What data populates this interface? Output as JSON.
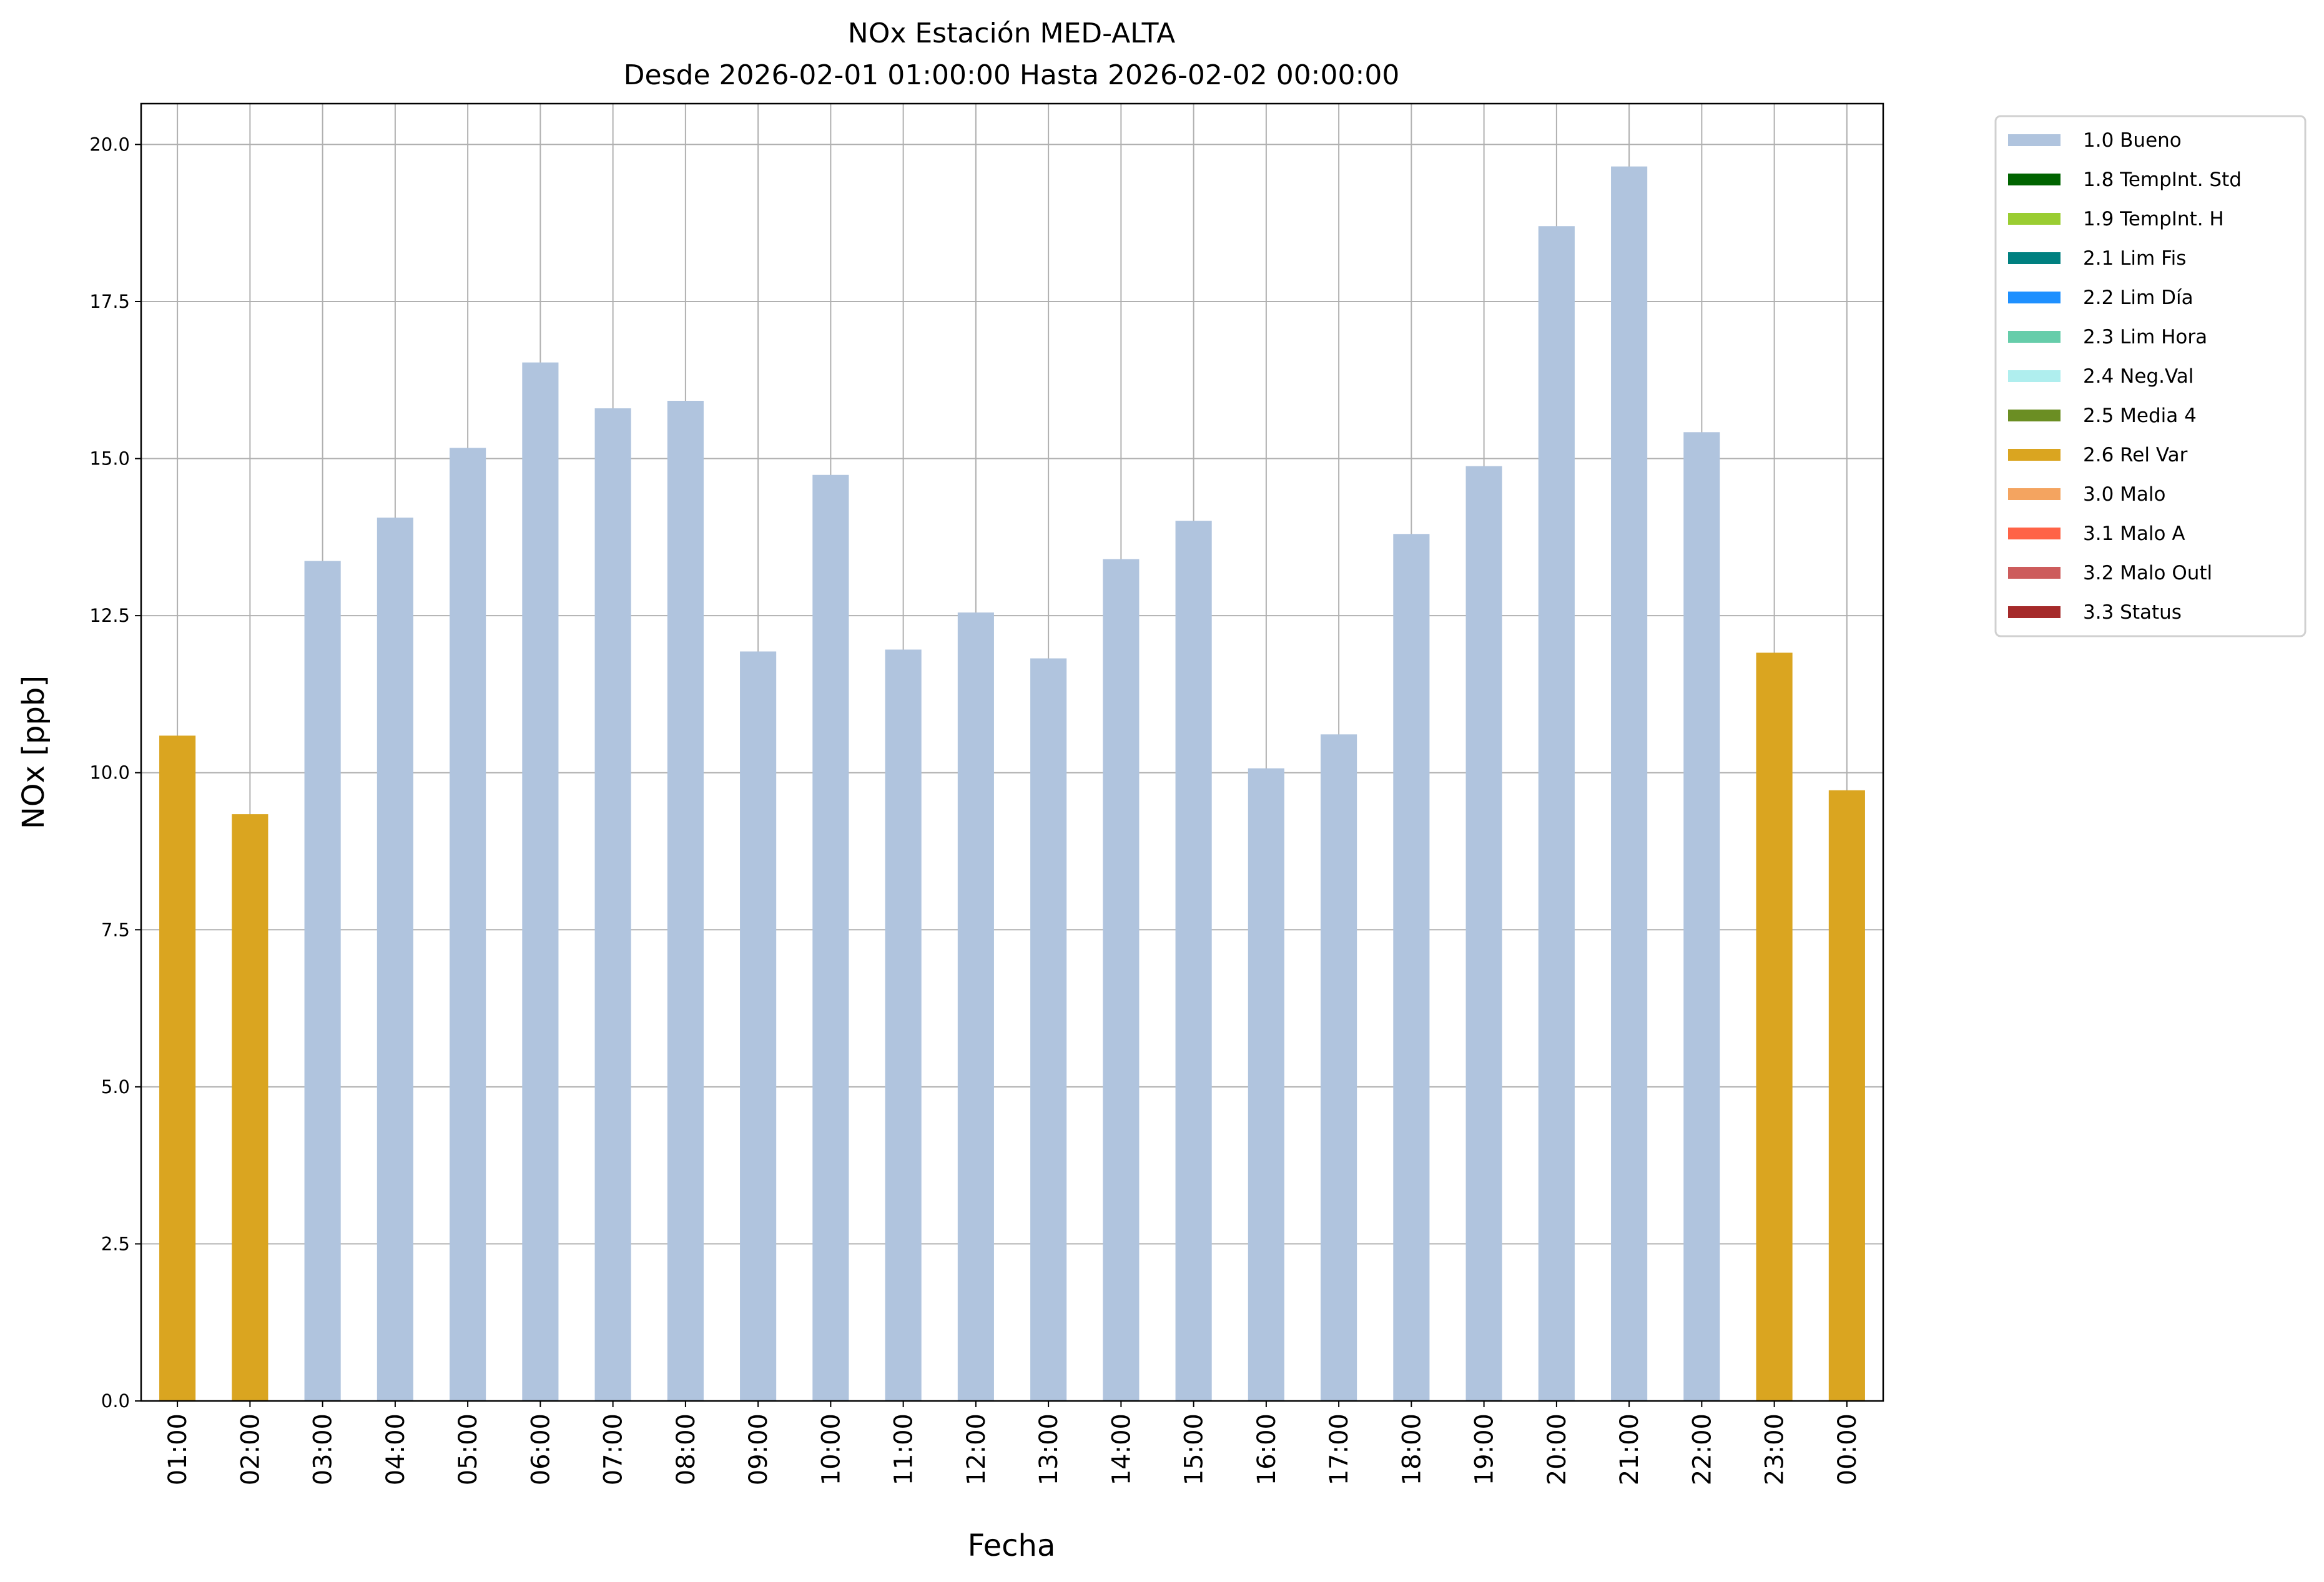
{
  "chart_data": {
    "type": "bar",
    "title": "NOx Estación MED-ALTA",
    "subtitle": "Desde 2026-02-01 01:00:00 Hasta 2026-02-02 00:00:00",
    "xlabel": "Fecha",
    "ylabel": "NOx [ppb]",
    "ylim": [
      0,
      20.65
    ],
    "yticks": [
      "0.0",
      "2.5",
      "5.0",
      "7.5",
      "10.0",
      "12.5",
      "15.0",
      "17.5",
      "20.0"
    ],
    "grid": true,
    "legend_placement": "outside-top-right",
    "categories": [
      "01:00",
      "02:00",
      "03:00",
      "04:00",
      "05:00",
      "06:00",
      "07:00",
      "08:00",
      "09:00",
      "10:00",
      "11:00",
      "12:00",
      "13:00",
      "14:00",
      "15:00",
      "16:00",
      "17:00",
      "18:00",
      "19:00",
      "20:00",
      "21:00",
      "22:00",
      "23:00",
      "00:00"
    ],
    "values": [
      10.59,
      9.34,
      13.37,
      14.06,
      15.17,
      16.53,
      15.8,
      15.92,
      11.93,
      14.74,
      11.96,
      12.55,
      11.82,
      13.4,
      14.01,
      10.07,
      10.61,
      13.8,
      14.88,
      18.7,
      19.65,
      15.42,
      11.91,
      9.72
    ],
    "flags": [
      "2.6 Rel Var",
      "2.6 Rel Var",
      "1.0 Bueno",
      "1.0 Bueno",
      "1.0 Bueno",
      "1.0 Bueno",
      "1.0 Bueno",
      "1.0 Bueno",
      "1.0 Bueno",
      "1.0 Bueno",
      "1.0 Bueno",
      "1.0 Bueno",
      "1.0 Bueno",
      "1.0 Bueno",
      "1.0 Bueno",
      "1.0 Bueno",
      "1.0 Bueno",
      "1.0 Bueno",
      "1.0 Bueno",
      "1.0 Bueno",
      "1.0 Bueno",
      "1.0 Bueno",
      "2.6 Rel Var",
      "2.6 Rel Var"
    ],
    "legend": [
      {
        "label": "1.0 Bueno",
        "color": "#b0c4de"
      },
      {
        "label": "1.8 TempInt. Std",
        "color": "#006400"
      },
      {
        "label": "1.9 TempInt. H",
        "color": "#9acd32"
      },
      {
        "label": "2.1 Lim Fis",
        "color": "#008080"
      },
      {
        "label": "2.2 Lim Día",
        "color": "#1e90ff"
      },
      {
        "label": "2.3 Lim Hora",
        "color": "#66cdaa"
      },
      {
        "label": "2.4 Neg.Val",
        "color": "#afeeee"
      },
      {
        "label": "2.5 Media 4",
        "color": "#6b8e23"
      },
      {
        "label": "2.6 Rel Var",
        "color": "#daa520"
      },
      {
        "label": "3.0 Malo",
        "color": "#f4a460"
      },
      {
        "label": "3.1 Malo A",
        "color": "#ff6347"
      },
      {
        "label": "3.2 Malo Outl",
        "color": "#cd5c5c"
      },
      {
        "label": "3.3 Status",
        "color": "#a52a2a"
      }
    ]
  }
}
